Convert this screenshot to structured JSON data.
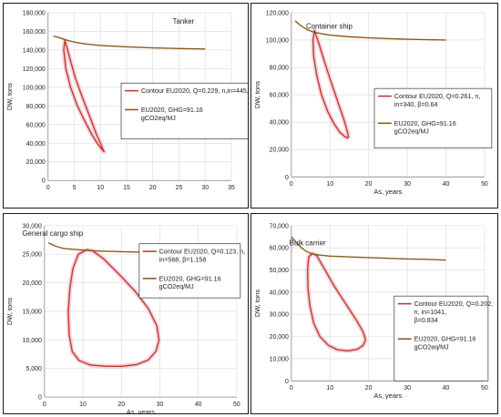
{
  "colors": {
    "contour": "#c0392b",
    "ghg": "#8b5a1e",
    "contour_halo": "#f4c6d4",
    "grid": "#d9d9d9",
    "axis": "#888888"
  },
  "chart_data": [
    {
      "type": "line",
      "title": "Tanker",
      "xlabel": "",
      "ylabel": "DW, tons",
      "xlim": [
        0,
        35
      ],
      "ylim": [
        0,
        180000
      ],
      "xticks": [
        "0",
        "5",
        "10",
        "15",
        "20",
        "25",
        "30",
        "35"
      ],
      "yticks": [
        "0",
        "20,000",
        "40,000",
        "60,000",
        "80,000",
        "100,000",
        "120,000",
        "140,000",
        "160,000",
        "180,000"
      ],
      "grid": true,
      "legend_position": "right",
      "series": [
        {
          "name": "Contour EU2020, Q=0.229, n,in=445, β=0.741",
          "style": "contour",
          "x": [
            3.2,
            3.0,
            3.4,
            4.3,
            5.6,
            7.0,
            8.3,
            9.4,
            10.2,
            10.6,
            10.7,
            10.5,
            10.0,
            9.2,
            8.0,
            6.5,
            5.2,
            4.2,
            3.5,
            3.2
          ],
          "y": [
            150000,
            140000,
            120000,
            100000,
            80000,
            64000,
            50000,
            40000,
            34000,
            31500,
            31000,
            33000,
            40000,
            50000,
            68000,
            90000,
            110000,
            130000,
            145000,
            150000
          ]
        },
        {
          "name": "EU2020, GHG=91.16 gCO2eq/MJ",
          "style": "ghg",
          "x": [
            1,
            2,
            3,
            4,
            5,
            7,
            10,
            15,
            20,
            25,
            30
          ],
          "y": [
            155000,
            153500,
            151500,
            149800,
            148500,
            146500,
            144800,
            143300,
            142300,
            141600,
            141000
          ]
        }
      ]
    },
    {
      "type": "line",
      "title": "Container ship",
      "xlabel": "As, years",
      "ylabel": "DW, tons",
      "xlim": [
        0,
        50
      ],
      "ylim": [
        0,
        120000
      ],
      "xticks": [
        "0",
        "10",
        "20",
        "30",
        "40",
        "50"
      ],
      "yticks": [
        "0",
        "20,000",
        "40,000",
        "60,000",
        "80,000",
        "100,000",
        "120,000"
      ],
      "grid": true,
      "legend_position": "right",
      "series": [
        {
          "name": "Contour EU2020, Q=0.261, n,in=340, β=0.64",
          "style": "contour",
          "x": [
            6.0,
            5.6,
            5.8,
            6.6,
            7.8,
            9.4,
            11.0,
            12.6,
            13.8,
            14.5,
            14.8,
            14.5,
            13.6,
            12.0,
            10.2,
            8.6,
            7.2,
            6.2,
            6.0
          ],
          "y": [
            107000,
            100000,
            88000,
            74000,
            60000,
            48000,
            39000,
            32500,
            29500,
            28500,
            29000,
            33000,
            42000,
            55000,
            70000,
            84000,
            97000,
            105000,
            107000
          ]
        },
        {
          "name": "EU2020, GHG=91.16 gCO2eq/MJ",
          "style": "ghg",
          "x": [
            1,
            2,
            3,
            4,
            5,
            6,
            8,
            10,
            15,
            20,
            25,
            30,
            35,
            40
          ],
          "y": [
            114000,
            111500,
            109500,
            107800,
            106600,
            105700,
            104500,
            103600,
            102400,
            101600,
            101000,
            100600,
            100300,
            100000
          ]
        }
      ]
    },
    {
      "type": "line",
      "title": "General cargo ship",
      "xlabel": "As, years",
      "ylabel": "DW, tons",
      "xlim": [
        0,
        50
      ],
      "ylim": [
        0,
        30000
      ],
      "xticks": [
        "0",
        "10",
        "20",
        "30",
        "40",
        "50"
      ],
      "yticks": [
        "0",
        "5,000",
        "10,000",
        "15,000",
        "20,000",
        "25,000",
        "30,000"
      ],
      "grid": true,
      "legend_position": "right",
      "series": [
        {
          "name": "Contour EU2020, Q=0.123, n,in=568, β=1.158",
          "style": "contour",
          "x": [
            11.0,
            8.8,
            7.4,
            6.6,
            6.2,
            6.4,
            7.2,
            9.0,
            12.0,
            16.0,
            20.0,
            24.0,
            27.0,
            29.0,
            29.8,
            29.2,
            27.0,
            23.6,
            19.4,
            15.2,
            12.5,
            11.0
          ],
          "y": [
            25800,
            25000,
            22500,
            19000,
            15000,
            11000,
            8000,
            6400,
            5600,
            5400,
            5400,
            5700,
            6500,
            8000,
            10000,
            12500,
            15500,
            18500,
            21500,
            24300,
            25600,
            25800
          ]
        },
        {
          "name": "EU2020, GHG=91.16 gCO2eq/MJ",
          "style": "ghg",
          "x": [
            1,
            2,
            3,
            4,
            5,
            7,
            10,
            12,
            15,
            20,
            25,
            30,
            35
          ],
          "y": [
            27000,
            26700,
            26400,
            26200,
            26000,
            25900,
            25750,
            25650,
            25550,
            25450,
            25380,
            25330,
            25300
          ]
        }
      ]
    },
    {
      "type": "line",
      "title": "Bulk carrier",
      "xlabel": "As, years",
      "ylabel": "DW, tons",
      "xlim": [
        0,
        50
      ],
      "ylim": [
        0,
        70000
      ],
      "xticks": [
        "0",
        "10",
        "20",
        "30",
        "40",
        "50"
      ],
      "yticks": [
        "0",
        "10,000",
        "20,000",
        "30,000",
        "40,000",
        "50,000",
        "60,000",
        "70,000"
      ],
      "grid": true,
      "legend_position": "right",
      "series": [
        {
          "name": "Contour EU2020, Q=0.202, n,in=1041, β=0.834",
          "style": "contour",
          "x": [
            5.5,
            4.5,
            4.2,
            4.3,
            4.8,
            5.8,
            7.4,
            9.6,
            12.0,
            14.6,
            17.0,
            18.6,
            19.2,
            18.6,
            16.8,
            14.0,
            11.0,
            8.4,
            6.6,
            5.5
          ],
          "y": [
            57500,
            56000,
            50000,
            42000,
            34000,
            26000,
            20000,
            16000,
            14000,
            13500,
            14200,
            16000,
            18500,
            22000,
            27500,
            35000,
            43000,
            51000,
            56500,
            57500
          ]
        },
        {
          "name": "EU2020, GHG=91.16 gCO2eq/MJ",
          "style": "ghg",
          "x": [
            0,
            1,
            2,
            3,
            4,
            5,
            6,
            8,
            10,
            15,
            20,
            25,
            30,
            35,
            40
          ],
          "y": [
            65000,
            63000,
            61000,
            59500,
            58300,
            57500,
            57000,
            56600,
            56300,
            55900,
            55600,
            55300,
            55000,
            54800,
            54500
          ]
        }
      ]
    }
  ]
}
